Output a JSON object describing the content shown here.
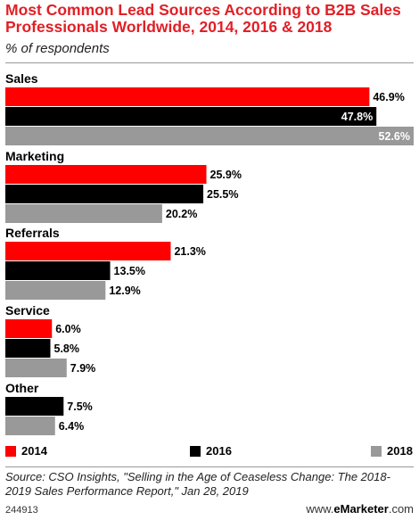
{
  "title": "Most Common Lead Sources According to B2B Sales Professionals Worldwide, 2014, 2016 & 2018",
  "subtitle": "% of respondents",
  "colors": {
    "2014": "#fe0000",
    "2016": "#000000",
    "2018": "#999999"
  },
  "chart_data": {
    "type": "bar",
    "orientation": "horizontal",
    "categories": [
      "Sales",
      "Marketing",
      "Referrals",
      "Service",
      "Other"
    ],
    "series": [
      {
        "name": "2014",
        "values": [
          46.9,
          25.9,
          21.3,
          6.0,
          null
        ],
        "labels": [
          "46.9%",
          "25.9%",
          "21.3%",
          "6.0%",
          ""
        ]
      },
      {
        "name": "2016",
        "values": [
          47.8,
          25.5,
          13.5,
          5.8,
          7.5
        ],
        "labels": [
          "47.8%",
          "25.5%",
          "13.5%",
          "5.8%",
          "7.5%"
        ]
      },
      {
        "name": "2018",
        "values": [
          52.6,
          20.2,
          12.9,
          7.9,
          6.4
        ],
        "labels": [
          "52.6%",
          "20.2%",
          "12.9%",
          "7.9%",
          "6.4%"
        ]
      }
    ],
    "unit": "%",
    "legend": "bottom"
  },
  "source": "Source: CSO Insights, \"Selling in the Age of Ceaseless Change: The 2018-2019 Sales Performance Report,\" Jan 28, 2019",
  "footer_id": "244913",
  "brand_prefix": "www.",
  "brand_name": "eMarketer",
  "brand_suffix": ".com"
}
